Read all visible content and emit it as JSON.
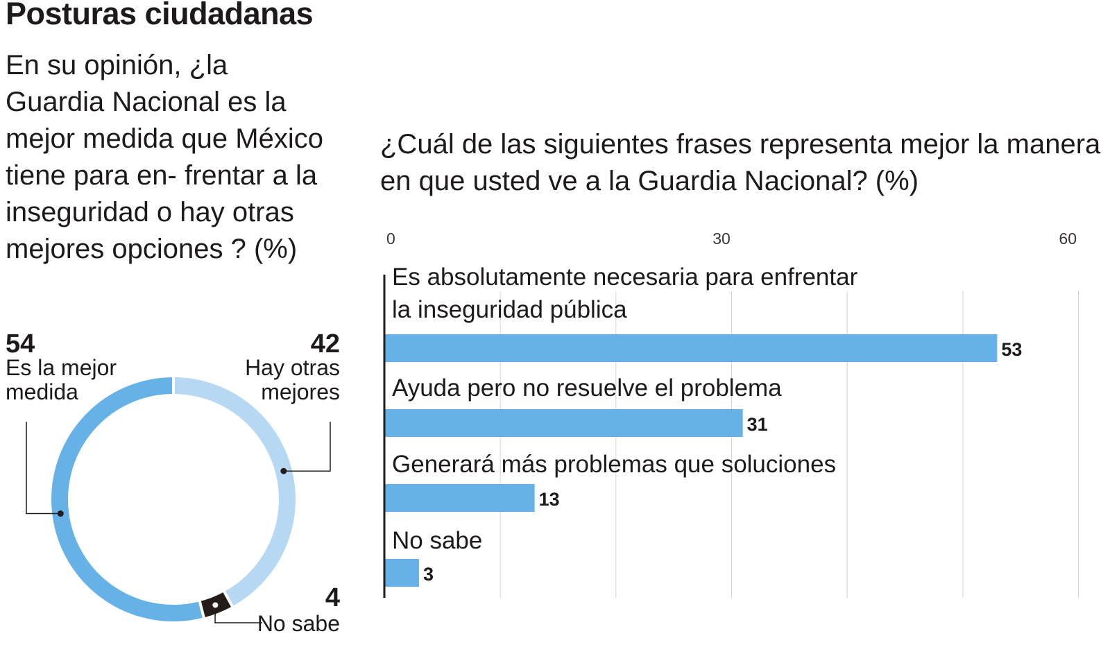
{
  "title": "Posturas ciudadanas",
  "left_question": "En su opinión, ¿la Guardia Nacional es la mejor medida que México tiene para en- frentar a la inseguridad o hay otras mejores opciones ? (%)",
  "right_question": "¿Cuál de las siguientes frases representa mejor la manera en que usted ve a la Guardia Nacional? (%)",
  "colors": {
    "blue": "#66b2e6",
    "light_blue": "#b6d8f2",
    "dark": "#231c1a",
    "grid": "#d3d3d3",
    "text": "#1d1a19"
  },
  "chart_data": [
    {
      "type": "pie",
      "variant": "donut",
      "slices": [
        {
          "label_lines": [
            "Es la mejor",
            "medida"
          ],
          "value": 54,
          "color": "#66b2e6"
        },
        {
          "label_lines": [
            "Hay otras",
            "mejores"
          ],
          "value": 42,
          "color": "#b6d8f2"
        },
        {
          "label_lines": [
            "No sabe"
          ],
          "value": 4,
          "color": "#231c1a"
        }
      ]
    },
    {
      "type": "bar",
      "orientation": "horizontal",
      "xlim": [
        0,
        60
      ],
      "x_ticks": [
        0,
        30,
        60
      ],
      "grid": true,
      "bars": [
        {
          "label_lines": [
            "Es absolutamente necesaria para enfrentar",
            "la inseguridad pública"
          ],
          "value": 53
        },
        {
          "label_lines": [
            "Ayuda pero no resuelve el problema"
          ],
          "value": 31
        },
        {
          "label_lines": [
            "Generará más problemas que soluciones"
          ],
          "value": 13
        },
        {
          "label_lines": [
            "No sabe"
          ],
          "value": 3
        }
      ],
      "bar_color": "#66b2e6"
    }
  ]
}
